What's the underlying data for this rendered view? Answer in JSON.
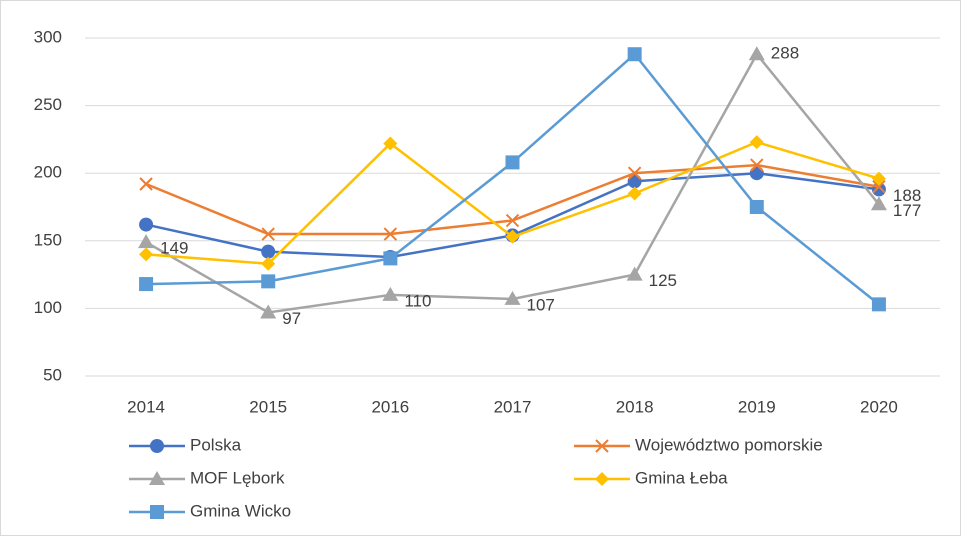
{
  "chart_data": {
    "type": "line",
    "categories": [
      "2014",
      "2015",
      "2016",
      "2017",
      "2018",
      "2019",
      "2020"
    ],
    "ylim": [
      50,
      300
    ],
    "yticks": [
      50,
      100,
      150,
      200,
      250,
      300
    ],
    "grid": true,
    "legend": "bottom",
    "series": [
      {
        "name": "Polska",
        "color": "#4472c4",
        "marker": "circle",
        "values": [
          162,
          142,
          138,
          154,
          194,
          200,
          188
        ],
        "data_labels": [
          6
        ]
      },
      {
        "name": "Województwo pomorskie",
        "color": "#ed7d31",
        "marker": "x",
        "values": [
          192,
          155,
          155,
          165,
          200,
          206,
          190
        ]
      },
      {
        "name": "MOF Lębork",
        "color": "#a5a5a5",
        "marker": "triangle",
        "values": [
          149,
          97,
          110,
          107,
          125,
          288,
          177
        ],
        "data_labels": [
          0,
          1,
          2,
          3,
          4,
          5,
          6
        ]
      },
      {
        "name": "Gmina Łeba",
        "color": "#ffc000",
        "marker": "diamond",
        "values": [
          140,
          133,
          222,
          153,
          185,
          223,
          196
        ]
      },
      {
        "name": "Gmina Wicko",
        "color": "#5b9bd5",
        "marker": "square",
        "values": [
          118,
          120,
          137,
          208,
          288,
          175,
          103
        ]
      }
    ]
  }
}
